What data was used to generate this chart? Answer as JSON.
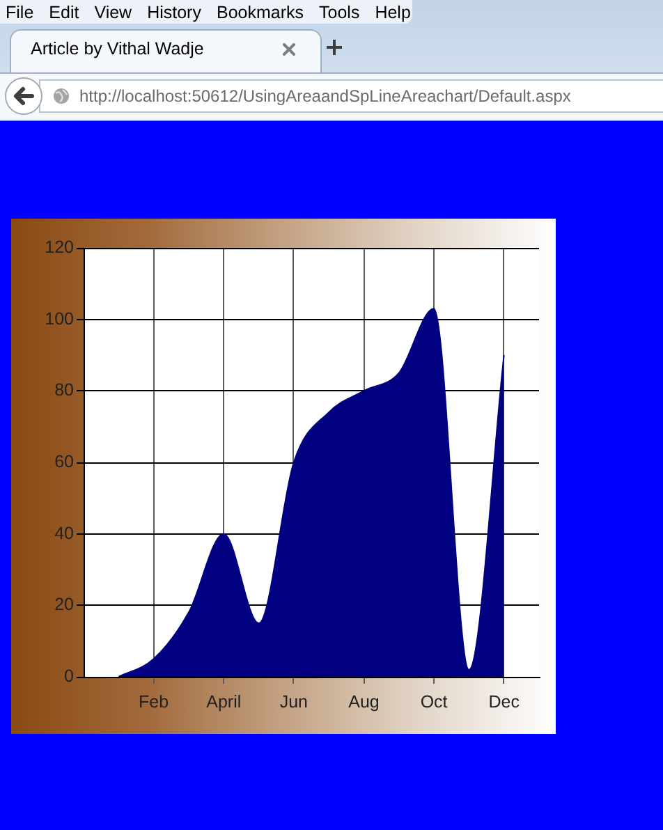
{
  "chart_data": {
    "type": "area",
    "categories": [
      null,
      "Feb",
      null,
      "April",
      null,
      "Jun",
      null,
      "Aug",
      null,
      "Oct",
      null,
      "Dec"
    ],
    "values": [
      0,
      5,
      18,
      40,
      15,
      60,
      74,
      80,
      85,
      103,
      2,
      90
    ],
    "color": "#000080",
    "ylim": [
      0,
      120
    ],
    "yticks": [
      0,
      20,
      40,
      60,
      80,
      100,
      120
    ],
    "grid": true,
    "annotations": [
      "File",
      "Edit",
      "View",
      "History",
      "Bookmarks",
      "Tools",
      "Help",
      "Article by Vithal Wadje",
      "http://localhost:50612/UsingAreaandSpLineAreachart/Default.aspx"
    ]
  }
}
